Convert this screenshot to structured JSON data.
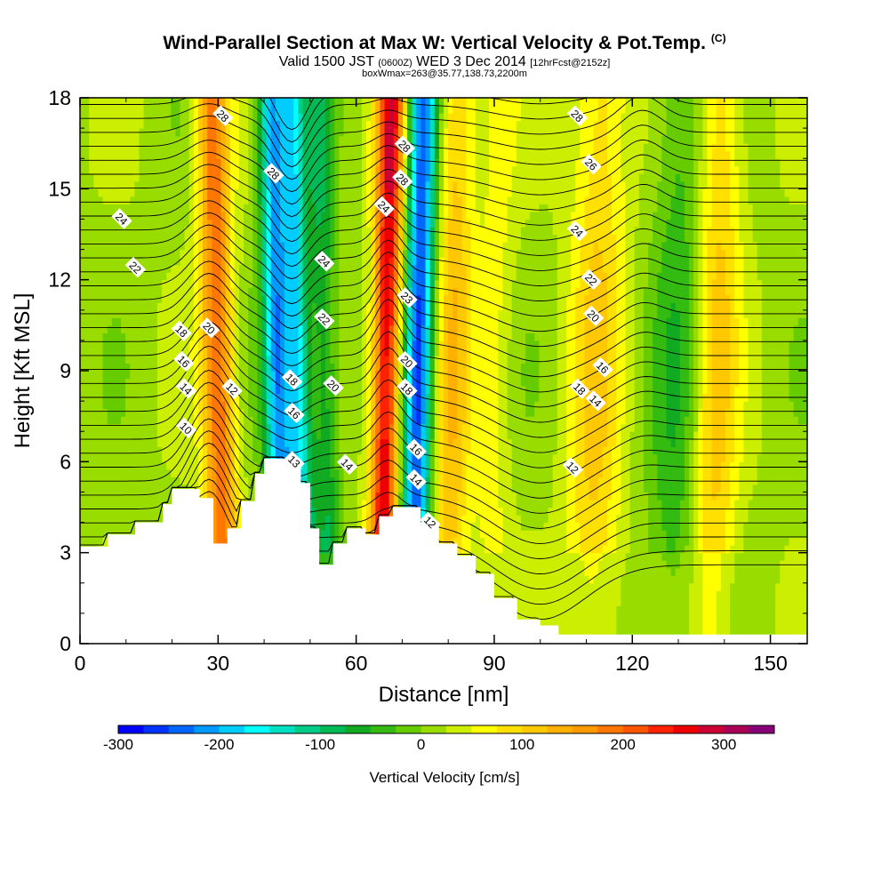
{
  "header": {
    "title": "Wind-Parallel Section at Max W: Vertical Velocity & Pot.Temp.",
    "copyright": "(C)",
    "valid_prefix": "Valid 1500 JST",
    "valid_zulu": "(0600Z)",
    "valid_date": "WED 3 Dec 2014",
    "forecast": "[12hrFcst@2152z]",
    "box_info": "boxWmax=263@35.77,138.73,2200m"
  },
  "chart_data": {
    "type": "heatmap",
    "xlabel": "Distance [nm]",
    "ylabel": "Height [Kft MSL]",
    "xlim": [
      0,
      158
    ],
    "ylim": [
      0,
      18
    ],
    "x_ticks": [
      "0",
      "30",
      "60",
      "90",
      "120",
      "150"
    ],
    "y_ticks": [
      "0",
      "3",
      "6",
      "9",
      "12",
      "15",
      "18"
    ],
    "colorbar": {
      "label": "Vertical Velocity [cm/s]",
      "range": [
        -300,
        350
      ],
      "step": 25,
      "tick_labels": [
        "-300",
        "-200",
        "-100",
        "0",
        "100",
        "200",
        "300"
      ],
      "colors": [
        "#0000ff",
        "#0033ff",
        "#0066ff",
        "#0099ff",
        "#00ccff",
        "#00ffff",
        "#00e0c0",
        "#00cc88",
        "#00bb55",
        "#11aa22",
        "#33bb11",
        "#66cc00",
        "#99dd00",
        "#ccee00",
        "#ffff00",
        "#ffe000",
        "#ffc800",
        "#ffb000",
        "#ff9900",
        "#ff7700",
        "#ff5500",
        "#ff2200",
        "#ee0000",
        "#cc0033",
        "#aa0055",
        "#880077"
      ]
    },
    "terrain_top_kft": [
      [
        0,
        3.2
      ],
      [
        6,
        3.6
      ],
      [
        12,
        4.0
      ],
      [
        18,
        4.6
      ],
      [
        20,
        5.1
      ],
      [
        26,
        4.8
      ],
      [
        29,
        3.3
      ],
      [
        32,
        3.8
      ],
      [
        35,
        4.7
      ],
      [
        38,
        5.6
      ],
      [
        40,
        6.1
      ],
      [
        45,
        6.0
      ],
      [
        48,
        5.3
      ],
      [
        50,
        3.8
      ],
      [
        52,
        2.6
      ],
      [
        55,
        3.3
      ],
      [
        58,
        3.8
      ],
      [
        62,
        3.6
      ],
      [
        65,
        4.2
      ],
      [
        68,
        4.5
      ],
      [
        74,
        4.0
      ],
      [
        78,
        3.3
      ],
      [
        82,
        2.9
      ],
      [
        86,
        2.3
      ],
      [
        90,
        1.5
      ],
      [
        95,
        0.8
      ],
      [
        100,
        0.6
      ],
      [
        104,
        0.3
      ],
      [
        120,
        0.3
      ],
      [
        158,
        0.3
      ]
    ],
    "velocity_bands": [
      {
        "x": 30,
        "peak": 175,
        "width": 3.5
      },
      {
        "x": 43,
        "peak": -230,
        "width": 3.0
      },
      {
        "x": 47.5,
        "peak": -170,
        "width": 2.5
      },
      {
        "x": 53,
        "peak": -90,
        "width": 3.0
      },
      {
        "x": 66.5,
        "peak": 255,
        "width": 3.0
      },
      {
        "x": 73.5,
        "peak": -270,
        "width": 3.0
      },
      {
        "x": 81,
        "peak": 95,
        "width": 4.0
      },
      {
        "x": 90,
        "peak": 40,
        "width": 4.0
      },
      {
        "x": 112,
        "peak": 80,
        "width": 6.0
      },
      {
        "x": 130,
        "peak": -60,
        "width": 6.0
      },
      {
        "x": 138,
        "peak": 90,
        "width": 5.0
      }
    ],
    "theta_contour_labels": [
      {
        "v": "28",
        "x": 31,
        "y": 17.4
      },
      {
        "v": "28",
        "x": 42,
        "y": 15.5
      },
      {
        "v": "28",
        "x": 70.5,
        "y": 16.4
      },
      {
        "v": "28",
        "x": 70,
        "y": 15.3
      },
      {
        "v": "28",
        "x": 108,
        "y": 17.4
      },
      {
        "v": "26",
        "x": 111,
        "y": 15.8
      },
      {
        "v": "24",
        "x": 9,
        "y": 14.0
      },
      {
        "v": "22",
        "x": 12,
        "y": 12.4
      },
      {
        "v": "24",
        "x": 66,
        "y": 14.4
      },
      {
        "v": "24",
        "x": 53,
        "y": 12.6
      },
      {
        "v": "24",
        "x": 108,
        "y": 13.6
      },
      {
        "v": "22",
        "x": 53,
        "y": 10.7
      },
      {
        "v": "22",
        "x": 111,
        "y": 12.0
      },
      {
        "v": "20",
        "x": 111.5,
        "y": 10.8
      },
      {
        "v": "18",
        "x": 22,
        "y": 10.3
      },
      {
        "v": "20",
        "x": 28,
        "y": 10.4
      },
      {
        "v": "23",
        "x": 71,
        "y": 11.4
      },
      {
        "v": "20",
        "x": 71,
        "y": 9.3
      },
      {
        "v": "16",
        "x": 22.5,
        "y": 9.3
      },
      {
        "v": "18",
        "x": 46,
        "y": 8.7
      },
      {
        "v": "20",
        "x": 55,
        "y": 8.5
      },
      {
        "v": "18",
        "x": 71,
        "y": 8.4
      },
      {
        "v": "16",
        "x": 113.5,
        "y": 9.1
      },
      {
        "v": "14",
        "x": 23,
        "y": 8.4
      },
      {
        "v": "12",
        "x": 33,
        "y": 8.4
      },
      {
        "v": "16",
        "x": 46.5,
        "y": 7.6
      },
      {
        "v": "18",
        "x": 108.5,
        "y": 8.4
      },
      {
        "v": "14",
        "x": 112,
        "y": 8.0
      },
      {
        "v": "10",
        "x": 23,
        "y": 7.1
      },
      {
        "v": "16",
        "x": 73,
        "y": 6.4
      },
      {
        "v": "13",
        "x": 46.5,
        "y": 6.0
      },
      {
        "v": "14",
        "x": 58,
        "y": 5.9
      },
      {
        "v": "14",
        "x": 73,
        "y": 5.4
      },
      {
        "v": "12",
        "x": 107,
        "y": 5.8
      },
      {
        "v": "12",
        "x": 76,
        "y": 4.0
      }
    ]
  }
}
